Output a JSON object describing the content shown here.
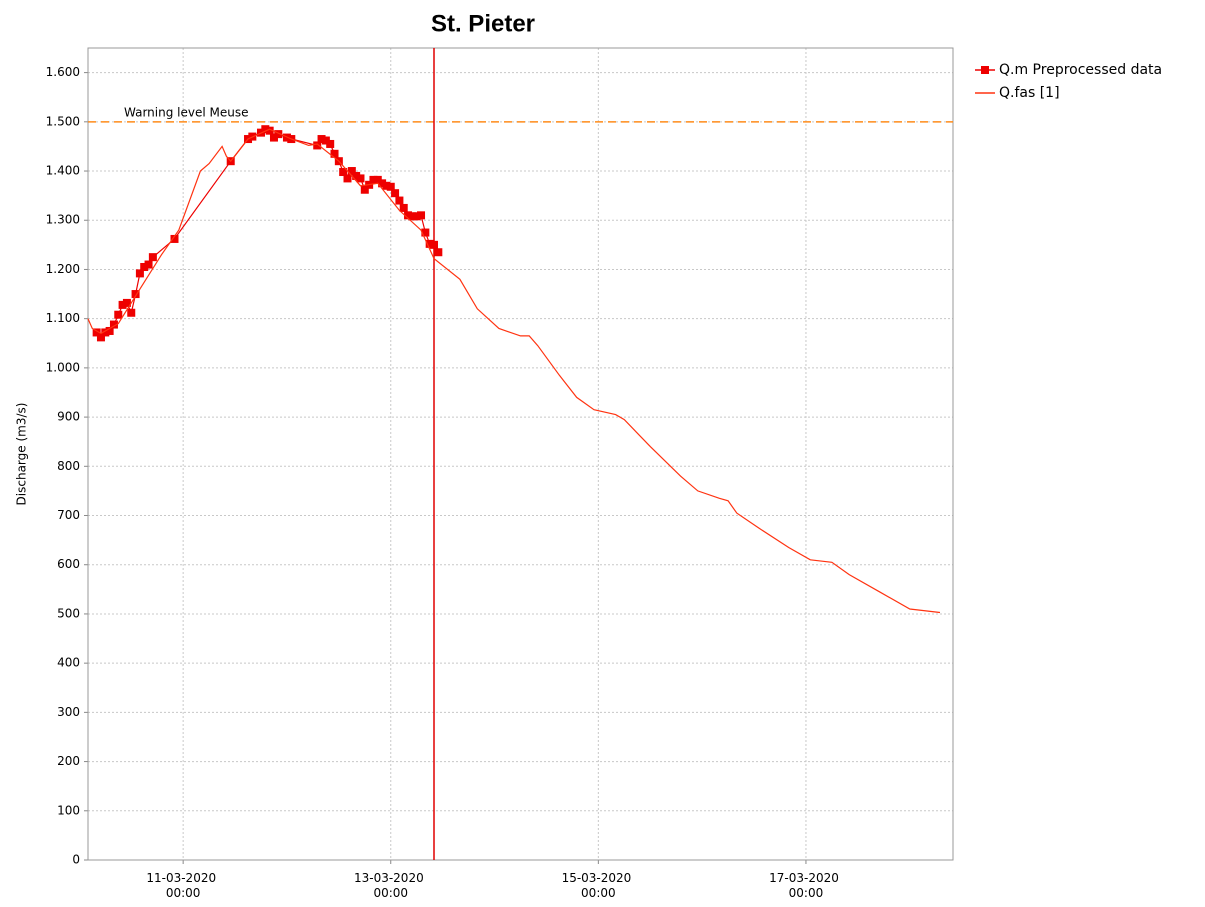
{
  "chart_data": {
    "type": "line",
    "title": "St. Pieter",
    "y_label": "Discharge (m3/s)",
    "xlim": [
      "10-03-2020 02:00",
      "18-03-2020 10:00"
    ],
    "xticks": [
      "11-03-2020 00:00",
      "13-03-2020 00:00",
      "15-03-2020 00:00",
      "17-03-2020 00:00"
    ],
    "ylim": [
      0,
      1650
    ],
    "yticks": [
      0,
      100,
      200,
      300,
      400,
      500,
      600,
      700,
      800,
      900,
      {
        "value": 1000,
        "label": "1.000"
      },
      {
        "value": 1100,
        "label": "1.100"
      },
      {
        "value": 1200,
        "label": "1.200"
      },
      {
        "value": 1300,
        "label": "1.300"
      },
      {
        "value": 1400,
        "label": "1.400"
      },
      {
        "value": 1500,
        "label": "1.500"
      },
      {
        "value": 1600,
        "label": "1.600"
      }
    ],
    "grid": true,
    "legend": "right",
    "threshold": {
      "label": "Warning level Meuse",
      "value": 1500,
      "color": "#ff8c1a"
    },
    "vline": {
      "x": "13-03-2020 10:00",
      "color": "#e00000"
    },
    "series": [
      {
        "name": "Q.m Preprocessed data",
        "color": "#ee0000",
        "markers": true,
        "x": [
          "10-03-2020 04:00",
          "10-03-2020 05:00",
          "10-03-2020 06:00",
          "10-03-2020 07:00",
          "10-03-2020 08:00",
          "10-03-2020 09:00",
          "10-03-2020 10:00",
          "10-03-2020 11:00",
          "10-03-2020 12:00",
          "10-03-2020 13:00",
          "10-03-2020 14:00",
          "10-03-2020 15:00",
          "10-03-2020 16:00",
          "10-03-2020 17:00",
          "10-03-2020 22:00",
          "11-03-2020 11:00",
          "11-03-2020 15:00",
          "11-03-2020 16:00",
          "11-03-2020 18:00",
          "11-03-2020 19:00",
          "11-03-2020 20:00",
          "11-03-2020 21:00",
          "11-03-2020 22:00",
          "12-03-2020 00:00",
          "12-03-2020 01:00",
          "12-03-2020 07:00",
          "12-03-2020 08:00",
          "12-03-2020 09:00",
          "12-03-2020 10:00",
          "12-03-2020 11:00",
          "12-03-2020 12:00",
          "12-03-2020 13:00",
          "12-03-2020 14:00",
          "12-03-2020 15:00",
          "12-03-2020 16:00",
          "12-03-2020 17:00",
          "12-03-2020 18:00",
          "12-03-2020 19:00",
          "12-03-2020 20:00",
          "12-03-2020 21:00",
          "12-03-2020 22:00",
          "12-03-2020 23:00",
          "13-03-2020 00:00",
          "13-03-2020 01:00",
          "13-03-2020 02:00",
          "13-03-2020 03:00",
          "13-03-2020 04:00",
          "13-03-2020 05:00",
          "13-03-2020 06:00",
          "13-03-2020 07:00",
          "13-03-2020 08:00",
          "13-03-2020 09:00",
          "13-03-2020 10:00",
          "13-03-2020 11:00"
        ],
        "values": [
          1072,
          1062,
          1072,
          1075,
          1088,
          1108,
          1128,
          1132,
          1112,
          1150,
          1192,
          1205,
          1210,
          1225,
          1262,
          1420,
          1465,
          1470,
          1478,
          1485,
          1482,
          1468,
          1475,
          1468,
          1465,
          1452,
          1465,
          1462,
          1455,
          1435,
          1420,
          1398,
          1385,
          1400,
          1390,
          1385,
          1362,
          1372,
          1382,
          1382,
          1375,
          1370,
          1368,
          1355,
          1340,
          1325,
          1310,
          1308,
          1308,
          1310,
          1275,
          1252,
          1250,
          1235
        ]
      },
      {
        "name": "Q.fas [1]",
        "color": "#ff3311",
        "markers": false,
        "x": [
          "10-03-2020 02:00",
          "10-03-2020 03:00",
          "10-03-2020 05:00",
          "10-03-2020 09:00",
          "10-03-2020 14:00",
          "10-03-2020 19:00",
          "10-03-2020 23:00",
          "11-03-2020 04:00",
          "11-03-2020 06:00",
          "11-03-2020 09:00",
          "11-03-2020 10:00",
          "11-03-2020 11:00",
          "11-03-2020 15:00",
          "11-03-2020 20:00",
          "12-03-2020 01:00",
          "12-03-2020 05:00",
          "12-03-2020 07:00",
          "12-03-2020 12:00",
          "12-03-2020 17:00",
          "12-03-2020 21:00",
          "13-03-2020 02:00",
          "13-03-2020 07:00",
          "13-03-2020 10:00",
          "13-03-2020 16:00",
          "13-03-2020 20:00",
          "14-03-2020 01:00",
          "14-03-2020 06:00",
          "14-03-2020 08:00",
          "14-03-2020 10:00",
          "14-03-2020 15:00",
          "14-03-2020 19:00",
          "14-03-2020 23:00",
          "15-03-2020 04:00",
          "15-03-2020 06:00",
          "15-03-2020 12:00",
          "15-03-2020 19:00",
          "15-03-2020 23:00",
          "16-03-2020 04:00",
          "16-03-2020 06:00",
          "16-03-2020 08:00",
          "16-03-2020 13:00",
          "16-03-2020 20:00",
          "17-03-2020 01:00",
          "17-03-2020 06:00",
          "17-03-2020 10:00",
          "17-03-2020 17:00",
          "18-03-2020 00:00",
          "18-03-2020 07:00"
        ],
        "values": [
          1100,
          1080,
          1070,
          1090,
          1160,
          1230,
          1280,
          1400,
          1415,
          1450,
          1430,
          1420,
          1465,
          1485,
          1465,
          1452,
          1455,
          1420,
          1370,
          1375,
          1320,
          1280,
          1222,
          1180,
          1120,
          1080,
          1065,
          1065,
          1045,
          985,
          940,
          915,
          905,
          895,
          840,
          780,
          750,
          735,
          730,
          705,
          675,
          635,
          610,
          605,
          580,
          545,
          510,
          503
        ]
      }
    ]
  }
}
